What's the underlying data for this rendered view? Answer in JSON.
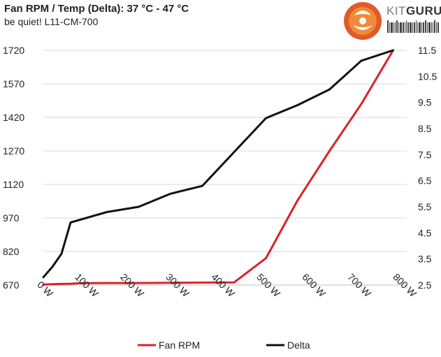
{
  "chart_data": {
    "type": "line",
    "title": "Fan RPM / Temp (Delta): 37 °C - 47 °C",
    "subtitle": "be quiet! L11-CM-700",
    "x_tick_labels": [
      "0 W",
      "100 W",
      "200 W",
      "300 W",
      "400 W",
      "500 W",
      "600 W",
      "700 W",
      "800 W"
    ],
    "x_ticks": [
      0,
      100,
      200,
      300,
      400,
      500,
      600,
      700,
      800
    ],
    "xlim": [
      0,
      800
    ],
    "y_left_ticks": [
      670,
      820,
      970,
      1120,
      1270,
      1420,
      1570,
      1720
    ],
    "y_left_lim": [
      670,
      1720
    ],
    "y_right_ticks": [
      2.5,
      3.5,
      4.5,
      5.5,
      6.5,
      7.5,
      8.5,
      9.5,
      10.5,
      11.5
    ],
    "y_right_tick_labels": [
      "2.5",
      "3.5",
      "4.5",
      "5.5",
      "6.5",
      "7.5",
      "8.5",
      "9.5",
      "10.5",
      "11.5"
    ],
    "y_right_lim": [
      2.5,
      11.5
    ],
    "series": [
      {
        "name": "Fan RPM",
        "axis": "left",
        "color": "#d9232a",
        "x": [
          0,
          20,
          40,
          60,
          80,
          140,
          210,
          280,
          350,
          420,
          490,
          560,
          630,
          700,
          770
        ],
        "values": [
          672,
          674,
          675,
          676,
          678,
          679,
          679,
          680,
          681,
          682,
          790,
          1050,
          1270,
          1480,
          1720
        ]
      },
      {
        "name": "Delta",
        "axis": "right",
        "color": "#111111",
        "x": [
          0,
          20,
          40,
          60,
          80,
          140,
          210,
          280,
          350,
          420,
          490,
          560,
          630,
          700,
          770
        ],
        "values": [
          2.8,
          3.2,
          3.7,
          4.9,
          5.0,
          5.3,
          5.5,
          6.0,
          6.3,
          7.6,
          8.9,
          9.4,
          10.0,
          11.1,
          11.5
        ]
      }
    ],
    "legend": [
      "Fan RPM",
      "Delta"
    ],
    "grid": "horizontal",
    "legend_position": "bottom"
  },
  "brand": {
    "name_part1": "KIT",
    "name_part2": "GURU"
  }
}
